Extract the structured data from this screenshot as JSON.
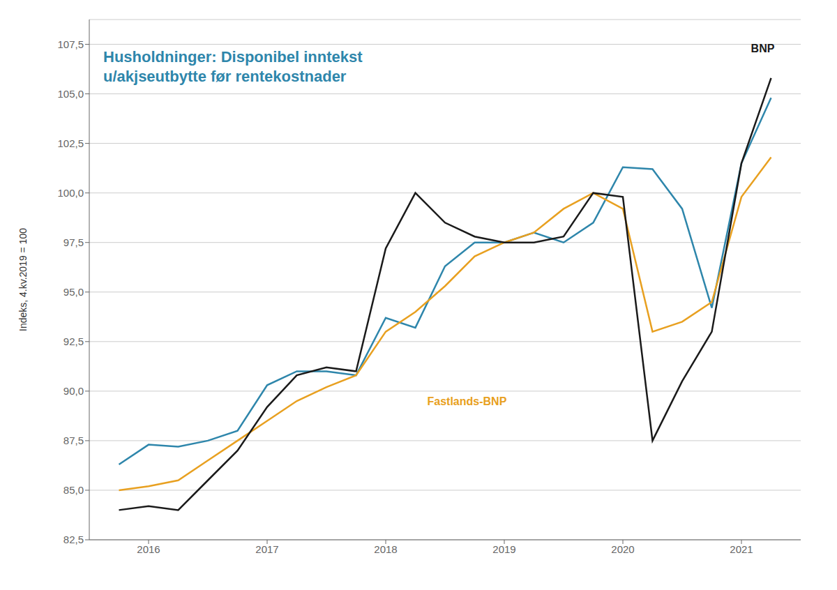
{
  "chart_data": {
    "type": "line",
    "title": "Husholdninger: Disponibel inntekst",
    "subtitle": "u/akjseutbytte før rentekostnader",
    "ylabel": "Indeks, 4.kv.2019 = 100",
    "x": [
      2015.75,
      2016.0,
      2016.25,
      2016.5,
      2016.75,
      2017.0,
      2017.25,
      2017.5,
      2017.75,
      2018.0,
      2018.25,
      2018.5,
      2018.75,
      2019.0,
      2019.25,
      2019.5,
      2019.75,
      2020.0,
      2020.25,
      2020.5,
      2020.75,
      2021.0,
      2021.25
    ],
    "series": [
      {
        "color": "#2E86AB",
        "values": [
          86.3,
          87.3,
          87.2,
          87.5,
          88.0,
          90.3,
          91.0,
          91.0,
          90.8,
          93.7,
          93.2,
          96.3,
          97.5,
          97.5,
          98.0,
          97.5,
          98.5,
          101.3,
          101.2,
          99.2,
          94.2,
          101.5,
          104.8
        ]
      },
      {
        "color": "#E8A020",
        "values": [
          85.0,
          85.2,
          85.5,
          86.5,
          87.5,
          88.5,
          89.5,
          90.2,
          90.8,
          93.0,
          94.0,
          95.3,
          96.8,
          97.5,
          98.0,
          99.2,
          100.0,
          99.2,
          93.0,
          93.5,
          94.5,
          99.8,
          101.8
        ]
      },
      {
        "color": "#1a1a1a",
        "values": [
          84.0,
          84.2,
          84.0,
          85.5,
          87.0,
          89.2,
          90.8,
          91.2,
          91.0,
          97.2,
          100.0,
          98.5,
          97.8,
          97.5,
          97.5,
          97.8,
          100.0,
          99.8,
          87.5,
          90.5,
          93.0,
          101.5,
          105.8
        ]
      }
    ],
    "annotations": [
      {
        "text": "Fastlands-BNP",
        "x": 2018.35,
        "y": 89.5,
        "color": "#E8A020"
      },
      {
        "text": "BNP",
        "x": 2021.08,
        "y": 107.3,
        "color": "#1a1a1a"
      }
    ],
    "xlim": [
      2015.5,
      2021.5
    ],
    "xticks": [
      2016,
      2017,
      2018,
      2019,
      2020,
      2021
    ],
    "ylim": [
      82.5,
      108.75
    ],
    "yticks": [
      {
        "value": 82.5,
        "label": "82,5"
      },
      {
        "value": 85.0,
        "label": "85,0"
      },
      {
        "value": 87.5,
        "label": "87,5"
      },
      {
        "value": 90.0,
        "label": "90,0"
      },
      {
        "value": 92.5,
        "label": "92,5"
      },
      {
        "value": 95.0,
        "label": "95,0"
      },
      {
        "value": 97.5,
        "label": "97,5"
      },
      {
        "value": 100.0,
        "label": "100,0"
      },
      {
        "value": 102.5,
        "label": "102,5"
      },
      {
        "value": 105.0,
        "label": "105,0"
      },
      {
        "value": 107.5,
        "label": "107,5"
      }
    ],
    "grid": true
  }
}
